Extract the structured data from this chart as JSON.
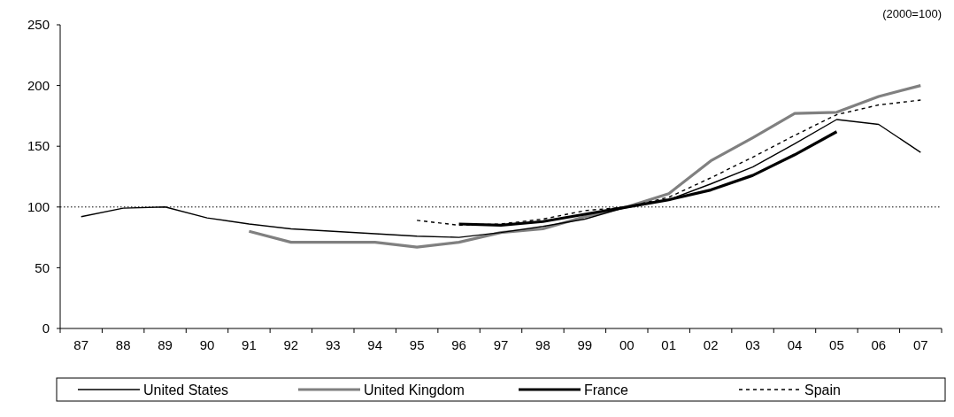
{
  "chart_data": {
    "type": "line",
    "annotations": [
      "(2000=100)"
    ],
    "categories": [
      "87",
      "88",
      "89",
      "90",
      "91",
      "92",
      "93",
      "94",
      "95",
      "96",
      "97",
      "98",
      "99",
      "00",
      "01",
      "02",
      "03",
      "04",
      "05",
      "06",
      "07"
    ],
    "ylim": [
      0,
      250
    ],
    "yticks": [
      0,
      50,
      100,
      150,
      200,
      250
    ],
    "grid": false,
    "legend": "bottom",
    "marker": "none",
    "ref_lines": [
      {
        "axis": "y",
        "value": 100,
        "color": "#000000",
        "line_style": "dotted"
      }
    ],
    "series": [
      {
        "name": "United States",
        "color": "#000000",
        "line_style": "solid",
        "values": [
          92,
          99,
          100,
          91,
          86,
          82,
          80,
          78,
          76,
          75,
          79,
          84,
          90,
          100,
          106,
          119,
          133,
          152,
          172,
          168,
          145
        ]
      },
      {
        "name": "United Kingdom",
        "color": "#808080",
        "line_style": "solid",
        "values": [
          null,
          null,
          null,
          null,
          80,
          71,
          71,
          71,
          67,
          71,
          79,
          82,
          92,
          100,
          111,
          138,
          157,
          177,
          178,
          191,
          200
        ]
      },
      {
        "name": "France",
        "color": "#000000",
        "line_style": "solid",
        "values": [
          null,
          null,
          null,
          null,
          null,
          null,
          null,
          null,
          null,
          86,
          85,
          88,
          94,
          100,
          106,
          114,
          126,
          143,
          162,
          null,
          null
        ]
      },
      {
        "name": "Spain",
        "color": "#000000",
        "line_style": "dashed",
        "values": [
          null,
          null,
          null,
          null,
          null,
          null,
          null,
          null,
          89,
          85,
          86,
          90,
          97,
          100,
          108,
          124,
          141,
          159,
          176,
          184,
          188
        ]
      }
    ]
  }
}
